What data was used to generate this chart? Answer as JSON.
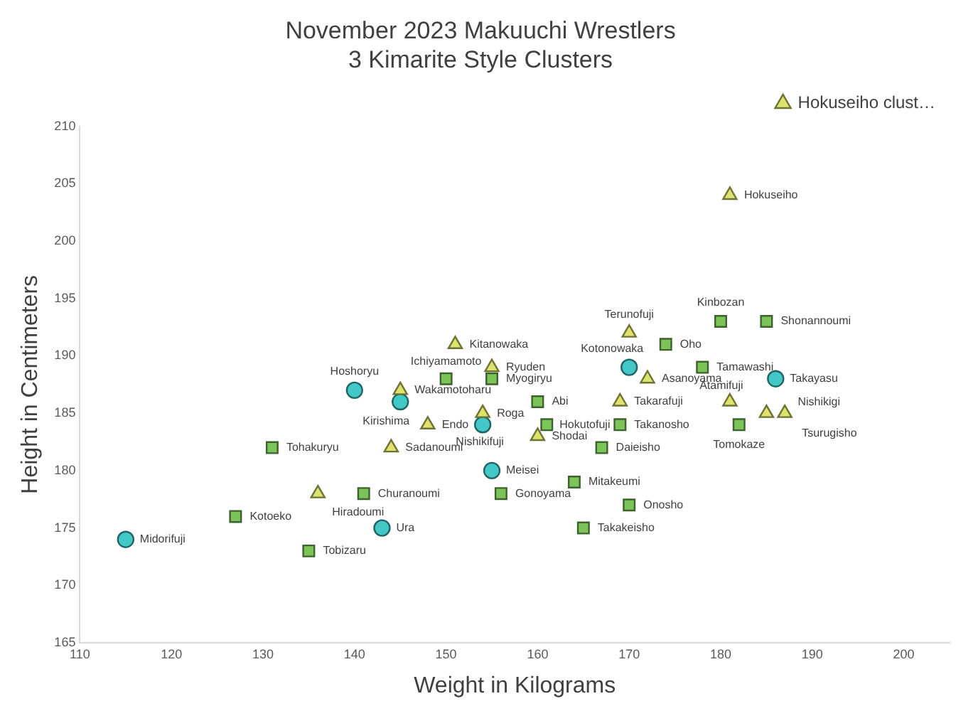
{
  "chart_data": {
    "type": "scatter",
    "title": "November 2023 Makuuchi Wrestlers",
    "subtitle": "3 Kimarite Style Clusters",
    "xlabel": "Weight in Kilograms",
    "ylabel": "Height in Centimeters",
    "xlim": [
      110,
      205
    ],
    "xticks": [
      110,
      120,
      130,
      140,
      150,
      160,
      170,
      180,
      190,
      200
    ],
    "ylim": [
      165,
      210
    ],
    "yticks": [
      165,
      170,
      175,
      180,
      185,
      190,
      195,
      200,
      205,
      210
    ],
    "grid": false,
    "legend": "top right",
    "series": [
      {
        "name": "Hokuseiho clust…",
        "color": "#dde36d",
        "marker": "triangle",
        "x": [
          181,
          170,
          151,
          155,
          145,
          172,
          169,
          181,
          185,
          187,
          154,
          148,
          160,
          144,
          136
        ],
        "values": [
          204,
          192,
          191,
          189,
          187,
          188,
          186,
          186,
          185,
          185,
          185,
          184,
          183,
          182,
          178
        ]
      },
      {
        "color": "#7cc35a",
        "marker": "square",
        "x": [
          180,
          185,
          174,
          178,
          150,
          155,
          160,
          161,
          169,
          182,
          167,
          131,
          164,
          156,
          141,
          170,
          165,
          127,
          135
        ],
        "values": [
          193,
          193,
          191,
          189,
          188,
          188,
          186,
          184,
          184,
          184,
          182,
          182,
          179,
          178,
          178,
          177,
          175,
          176,
          173
        ]
      },
      {
        "color": "#43c8c8",
        "marker": "circle",
        "x": [
          170,
          186,
          140,
          145,
          154,
          155,
          143,
          115
        ],
        "values": [
          189,
          188,
          187,
          186,
          184,
          180,
          175,
          174
        ]
      }
    ],
    "annotations": [
      {
        "text": "Hokuseiho",
        "x": 181,
        "y": 204
      },
      {
        "text": "Terunofuji",
        "x": 170,
        "y": 192
      },
      {
        "text": "Kitanowaka",
        "x": 151,
        "y": 191
      },
      {
        "text": "Ryuden",
        "x": 155,
        "y": 189
      },
      {
        "text": "Wakamotoharu",
        "x": 145,
        "y": 187
      },
      {
        "text": "Asanoyama",
        "x": 172,
        "y": 188
      },
      {
        "text": "Takarafuji",
        "x": 169,
        "y": 186
      },
      {
        "text": "Atamifuji",
        "x": 181,
        "y": 186
      },
      {
        "text": "Nishikigi",
        "x": 185,
        "y": 185
      },
      {
        "text": "Tsurugisho",
        "x": 187,
        "y": 185
      },
      {
        "text": "Roga",
        "x": 154,
        "y": 185
      },
      {
        "text": "Endo",
        "x": 148,
        "y": 184
      },
      {
        "text": "Shodai",
        "x": 160,
        "y": 183
      },
      {
        "text": "Sadanoumi",
        "x": 144,
        "y": 182
      },
      {
        "text": "Hiradoumi",
        "x": 136,
        "y": 178
      },
      {
        "text": "Kinbozan",
        "x": 180,
        "y": 193
      },
      {
        "text": "Shonannoumi",
        "x": 185,
        "y": 193
      },
      {
        "text": "Oho",
        "x": 174,
        "y": 191
      },
      {
        "text": "Tamawashi",
        "x": 178,
        "y": 189
      },
      {
        "text": "Ichiyamamoto",
        "x": 150,
        "y": 188
      },
      {
        "text": "Myogiryu",
        "x": 155,
        "y": 188
      },
      {
        "text": "Abi",
        "x": 160,
        "y": 186
      },
      {
        "text": "Hokutofuji",
        "x": 161,
        "y": 184
      },
      {
        "text": "Takanosho",
        "x": 169,
        "y": 184
      },
      {
        "text": "Tomokaze",
        "x": 182,
        "y": 184
      },
      {
        "text": "Daieisho",
        "x": 167,
        "y": 182
      },
      {
        "text": "Tohakuryu",
        "x": 131,
        "y": 182
      },
      {
        "text": "Mitakeumi",
        "x": 164,
        "y": 179
      },
      {
        "text": "Gonoyama",
        "x": 156,
        "y": 178
      },
      {
        "text": "Churanoumi",
        "x": 141,
        "y": 178
      },
      {
        "text": "Onosho",
        "x": 170,
        "y": 177
      },
      {
        "text": "Takakeisho",
        "x": 165,
        "y": 175
      },
      {
        "text": "Kotoeko",
        "x": 127,
        "y": 176
      },
      {
        "text": "Tobizaru",
        "x": 135,
        "y": 173
      },
      {
        "text": "Kotonowaka",
        "x": 170,
        "y": 189
      },
      {
        "text": "Takayasu",
        "x": 186,
        "y": 188
      },
      {
        "text": "Hoshoryu",
        "x": 140,
        "y": 187
      },
      {
        "text": "Kirishima",
        "x": 145,
        "y": 186
      },
      {
        "text": "Nishikifuji",
        "x": 154,
        "y": 184
      },
      {
        "text": "Meisei",
        "x": 155,
        "y": 180
      },
      {
        "text": "Ura",
        "x": 143,
        "y": 175
      },
      {
        "text": "Midorifuji",
        "x": 115,
        "y": 174
      }
    ]
  }
}
